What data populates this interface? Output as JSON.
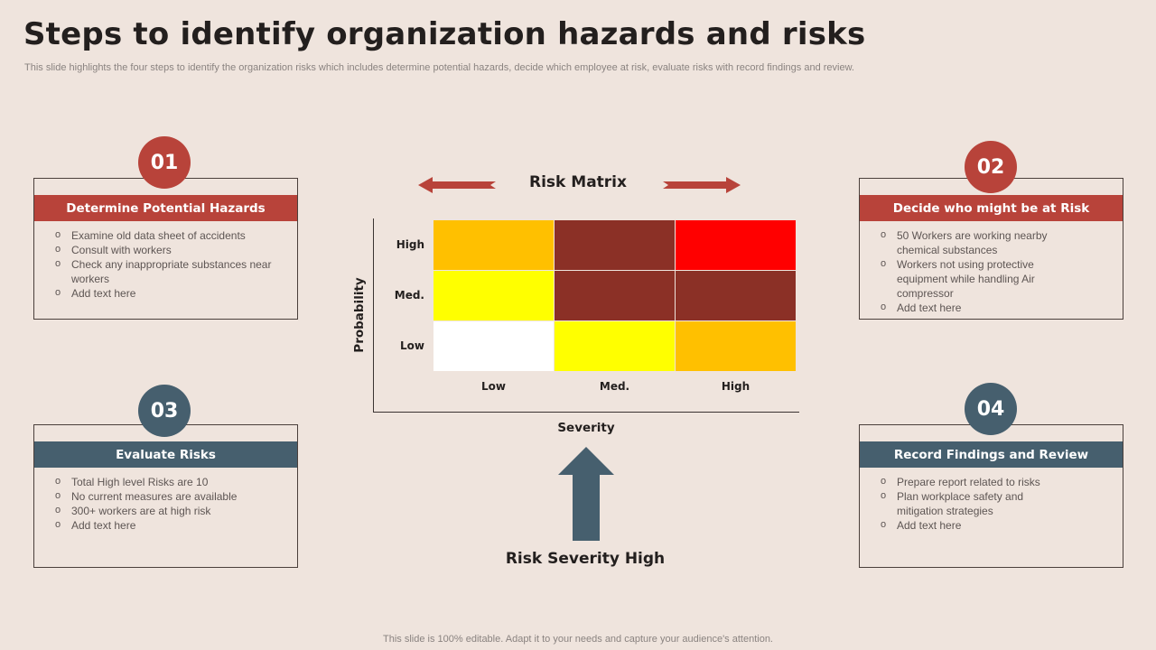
{
  "header": {
    "title": "Steps to identify organization hazards and risks",
    "subtitle": "This slide highlights the four steps to identify the organization risks which includes determine potential hazards, decide which employee at risk, evaluate risks with record findings and review."
  },
  "steps": [
    {
      "number": "01",
      "title": "Determine Potential Hazards",
      "items": [
        "Examine old data sheet of accidents",
        "Consult with workers",
        "Check any inappropriate  substances near workers",
        "Add text here"
      ]
    },
    {
      "number": "02",
      "title": "Decide who might be at Risk",
      "items": [
        "50 Workers are working nearby chemical substances",
        "Workers not using protective equipment while handling Air compressor",
        "Add text here"
      ]
    },
    {
      "number": "03",
      "title": "Evaluate Risks",
      "items": [
        "Total High level Risks are 10",
        "No current measures are available",
        "300+ workers  are at high risk",
        "Add text here"
      ]
    },
    {
      "number": "04",
      "title": "Record Findings and Review",
      "items": [
        "Prepare report related to risks",
        "Plan workplace safety and mitigation strategies",
        "Add text here"
      ]
    }
  ],
  "matrix": {
    "title": "Risk Matrix",
    "y_axis_label": "Probability",
    "x_axis_label": "Severity",
    "rows": [
      "High",
      "Med.",
      "Low"
    ],
    "columns": [
      "Low",
      "Med.",
      "High"
    ],
    "cell_colors": [
      [
        "#ffc000",
        "#8b3026",
        "#ff0000"
      ],
      [
        "#ffff00",
        "#8b3026",
        "#8b3026"
      ],
      [
        "#ffffff",
        "#ffff00",
        "#ffc000"
      ]
    ],
    "callout": "Risk Severity High"
  },
  "colors": {
    "accent_red": "#b8433a",
    "accent_slate": "#465f6e",
    "background": "#efe4dd"
  },
  "footer": "This slide is 100% editable. Adapt it to your needs and capture your audience's attention."
}
